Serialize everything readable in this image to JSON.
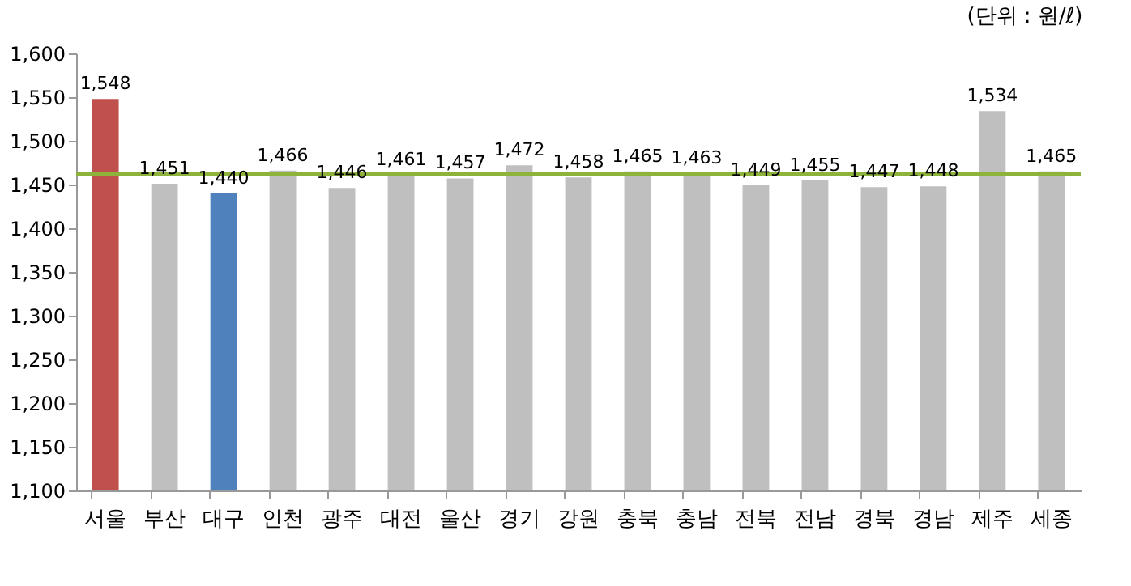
{
  "chart_data": {
    "type": "bar",
    "categories": [
      "서울",
      "부산",
      "대구",
      "인천",
      "광주",
      "대전",
      "울산",
      "경기",
      "강원",
      "충북",
      "충남",
      "전북",
      "전남",
      "경북",
      "경남",
      "제주",
      "세종"
    ],
    "values": [
      1548,
      1451,
      1440,
      1466,
      1446,
      1461,
      1457,
      1472,
      1458,
      1465,
      1463,
      1449,
      1455,
      1447,
      1448,
      1534,
      1465
    ],
    "colors": [
      "#c0504d",
      "#bfbfbf",
      "#4f81bd",
      "#bfbfbf",
      "#bfbfbf",
      "#bfbfbf",
      "#bfbfbf",
      "#bfbfbf",
      "#bfbfbf",
      "#bfbfbf",
      "#bfbfbf",
      "#bfbfbf",
      "#bfbfbf",
      "#bfbfbf",
      "#bfbfbf",
      "#bfbfbf",
      "#bfbfbf"
    ],
    "value_labels": [
      "1,548",
      "1,451",
      "1,440",
      "1,466",
      "1,446",
      "1,461",
      "1,457",
      "1,472",
      "1,458",
      "1,465",
      "1,463",
      "1,449",
      "1,455",
      "1,447",
      "1,448",
      "1,534",
      "1,465"
    ],
    "ylim": [
      1100,
      1600
    ],
    "yticks": [
      {
        "value": 1100,
        "label": "1,100"
      },
      {
        "value": 1150,
        "label": "1,150"
      },
      {
        "value": 1200,
        "label": "1,200"
      },
      {
        "value": 1250,
        "label": "1,250"
      },
      {
        "value": 1300,
        "label": "1,300"
      },
      {
        "value": 1350,
        "label": "1,350"
      },
      {
        "value": 1400,
        "label": "1,400"
      },
      {
        "value": 1450,
        "label": "1,450"
      },
      {
        "value": 1500,
        "label": "1,500"
      },
      {
        "value": 1550,
        "label": "1,550"
      },
      {
        "value": 1600,
        "label": "1,600"
      }
    ],
    "ref_lines": [
      {
        "axis": "y",
        "value": 1462,
        "color": "#8db33a"
      }
    ],
    "annotations": [
      "(단위 : 원/ℓ)"
    ],
    "grid": false
  }
}
